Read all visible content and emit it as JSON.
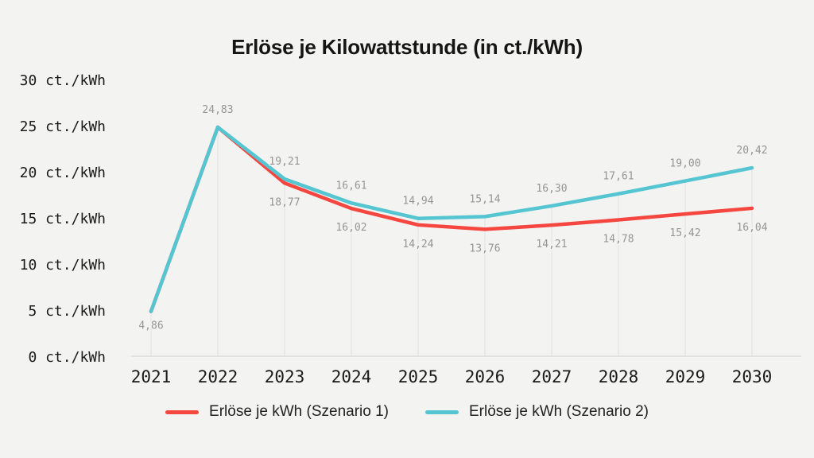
{
  "page": {
    "background_color": "#f3f3f1"
  },
  "chart_data": {
    "type": "line",
    "title": "Erlöse je Kilowattstunde (in ct./kWh)",
    "x": [
      2021,
      2022,
      2023,
      2024,
      2025,
      2026,
      2027,
      2028,
      2029,
      2030
    ],
    "x_tick_labels": [
      "2021",
      "2022",
      "2023",
      "2024",
      "2025",
      "2026",
      "2027",
      "2028",
      "2029",
      "2030"
    ],
    "y_axis": {
      "unit": "ct./kWh",
      "range": [
        0,
        30
      ],
      "ticks": [
        0,
        5,
        10,
        15,
        20,
        25,
        30
      ],
      "tick_labels": [
        "0 ct./kWh",
        "5 ct./kWh",
        "10 ct./kWh",
        "15 ct./kWh",
        "20 ct./kWh",
        "25 ct./kWh",
        "30 ct./kWh"
      ]
    },
    "series": [
      {
        "name": "Erlöse je kWh (Szenario 1)",
        "color": "#f5463f",
        "values": [
          4.86,
          24.83,
          18.77,
          16.02,
          14.24,
          13.76,
          14.21,
          14.78,
          15.42,
          16.04
        ],
        "point_labels": [
          null,
          null,
          "18,77",
          "16,02",
          "14,24",
          "13,76",
          "14,21",
          "14,78",
          "15,42",
          "16,04"
        ],
        "label_placement": "below"
      },
      {
        "name": "Erlöse je kWh (Szenario 2)",
        "color": "#55c5d1",
        "values": [
          4.86,
          24.83,
          19.21,
          16.61,
          14.94,
          15.14,
          16.3,
          17.61,
          19.0,
          20.42
        ],
        "point_labels": [
          "4,86",
          "24,83",
          "19,21",
          "16,61",
          "14,94",
          "15,14",
          "16,30",
          "17,61",
          "19,00",
          "20,42"
        ],
        "label_placement": "above"
      }
    ],
    "grid": "vertical-per-x-from-point-to-baseline",
    "gridline_color": "#e2e2e2",
    "baseline_color": "#dcdcdc",
    "legend_position": "bottom",
    "legend": [
      "Erlöse je kWh (Szenario 1)",
      "Erlöse je kWh (Szenario 2)"
    ]
  }
}
